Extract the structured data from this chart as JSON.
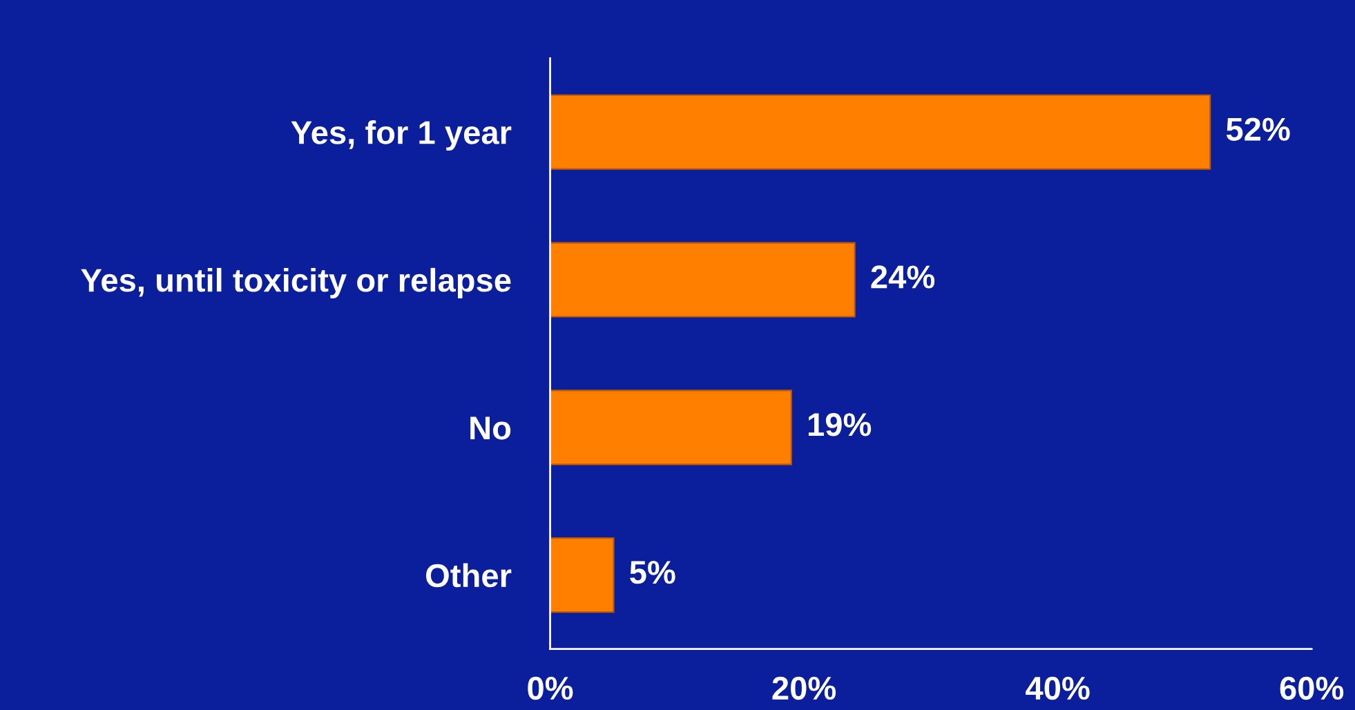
{
  "chart_data": {
    "type": "bar",
    "orientation": "horizontal",
    "categories": [
      "Yes, for 1 year",
      "Yes, until toxicity or relapse",
      "No",
      "Other"
    ],
    "values": [
      52,
      24,
      19,
      5
    ],
    "value_labels": [
      "52%",
      "24%",
      "19%",
      "5%"
    ],
    "color": "#ff8000",
    "xlim": [
      0,
      60
    ],
    "xticks": [
      {
        "value": 0,
        "label": "0%"
      },
      {
        "value": 20,
        "label": "20%"
      },
      {
        "value": 40,
        "label": "40%"
      },
      {
        "value": 60,
        "label": "60%"
      }
    ],
    "grid": false
  }
}
